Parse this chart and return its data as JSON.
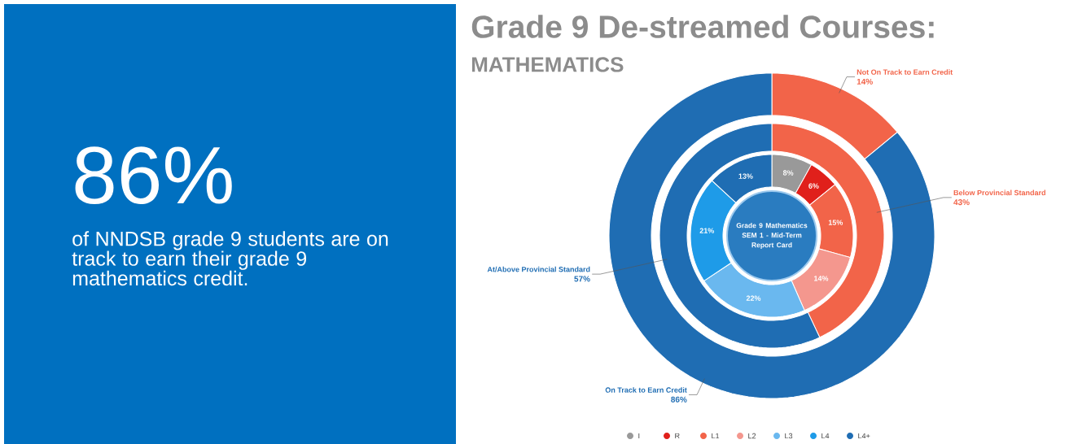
{
  "chart_data": [
    {
      "type": "other",
      "title": "86%",
      "subtitle": "of NNDSB grade 9 students are on track to earn their grade 9 mathematics credit."
    },
    {
      "type": "donut",
      "title": "Grade 9 De-streamed Courses:",
      "subtitle": "MATHEMATICS",
      "categories": [
        "Not On Track to Earn Credit",
        "On Track to Earn Credit"
      ],
      "values": [
        14,
        86
      ],
      "value_labels": [
        "14%",
        "86%"
      ],
      "colors": [
        "#f26449",
        "#1f6db3"
      ]
    },
    {
      "type": "donut",
      "categories": [
        "Below Provincial Standard",
        "At/Above Provincial Standard"
      ],
      "values": [
        43,
        57
      ],
      "value_labels": [
        "43%",
        "57%"
      ],
      "colors": [
        "#f26449",
        "#1f6db3"
      ]
    },
    {
      "type": "donut",
      "categories": [
        "I",
        "R",
        "L1",
        "L2",
        "L3",
        "L4",
        "L4+"
      ],
      "values": [
        8,
        6,
        15,
        14,
        22,
        21,
        13
      ],
      "value_labels": [
        "8%",
        "6%",
        "15%",
        "14%",
        "22%",
        "21%",
        "13%"
      ],
      "colors": [
        "#999999",
        "#e0201b",
        "#f26449",
        "#f4978e",
        "#6ab8ef",
        "#1e9be8",
        "#1f6db3"
      ],
      "legend": "bottom",
      "annotations": [
        "Grade 9 Mathematics SEM 1 - Mid-Term Report Card"
      ]
    }
  ]
}
